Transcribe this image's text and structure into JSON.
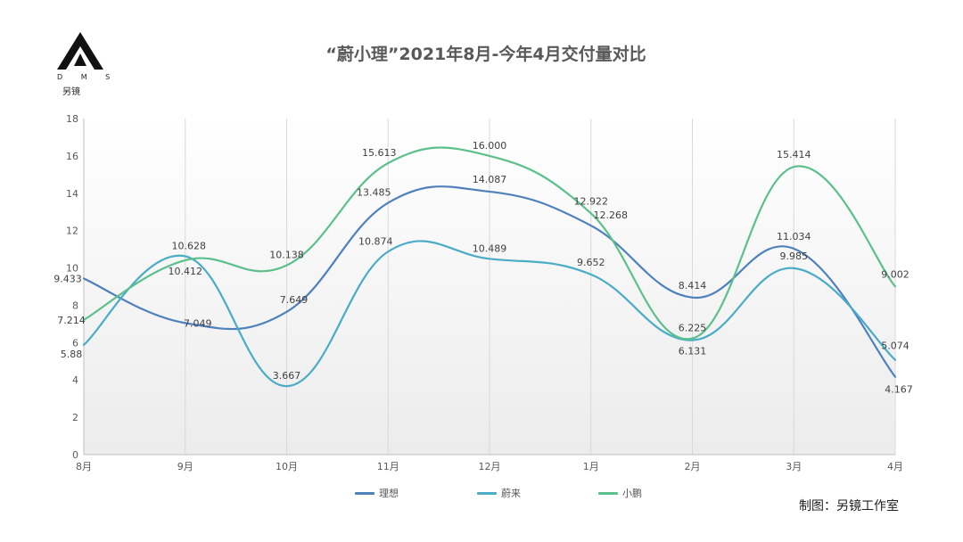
{
  "title": "“蔚小理”2021年8月-今年4月交付量对比",
  "logo": {
    "letters": "D M S",
    "cn": "另镜"
  },
  "credit": "制图：另镜工作室",
  "chart_data": {
    "type": "line",
    "title": "“蔚小理”2021年8月-今年4月交付量对比",
    "categories": [
      "8月",
      "9月",
      "10月",
      "11月",
      "12月",
      "1月",
      "2月",
      "3月",
      "4月"
    ],
    "ylim": [
      0,
      18
    ],
    "yticks": [
      "0",
      "2",
      "4",
      "6",
      "8",
      "10",
      "12",
      "14",
      "16",
      "18"
    ],
    "grid": "vertical",
    "legend_position": "bottom",
    "series": [
      {
        "name": "理想",
        "color": "#4f81bd",
        "values": [
          9.433,
          7.049,
          7.649,
          13.485,
          14.087,
          12.268,
          8.414,
          11.034,
          4.167
        ],
        "labels": [
          "9.433",
          "7.049",
          "7.649",
          "13.485",
          "14.087",
          "12.268",
          "8.414",
          "11.034",
          "4.167"
        ]
      },
      {
        "name": "蔚来",
        "color": "#4bacc6",
        "values": [
          5.88,
          10.628,
          3.667,
          10.874,
          10.489,
          9.652,
          6.131,
          9.985,
          5.074
        ],
        "labels": [
          "5.88",
          "10.628",
          "3.667",
          "10.874",
          "10.489",
          "9.652",
          "6.131",
          "9.985",
          "5.074"
        ]
      },
      {
        "name": "小鹏",
        "color": "#5cc08d",
        "values": [
          7.214,
          10.412,
          10.138,
          15.613,
          16.0,
          12.922,
          6.225,
          15.414,
          9.002
        ],
        "labels": [
          "7.214",
          "10.412",
          "10.138",
          "15.613",
          "16.000",
          "12.922",
          "6.225",
          "15.414",
          "9.002"
        ]
      }
    ]
  }
}
